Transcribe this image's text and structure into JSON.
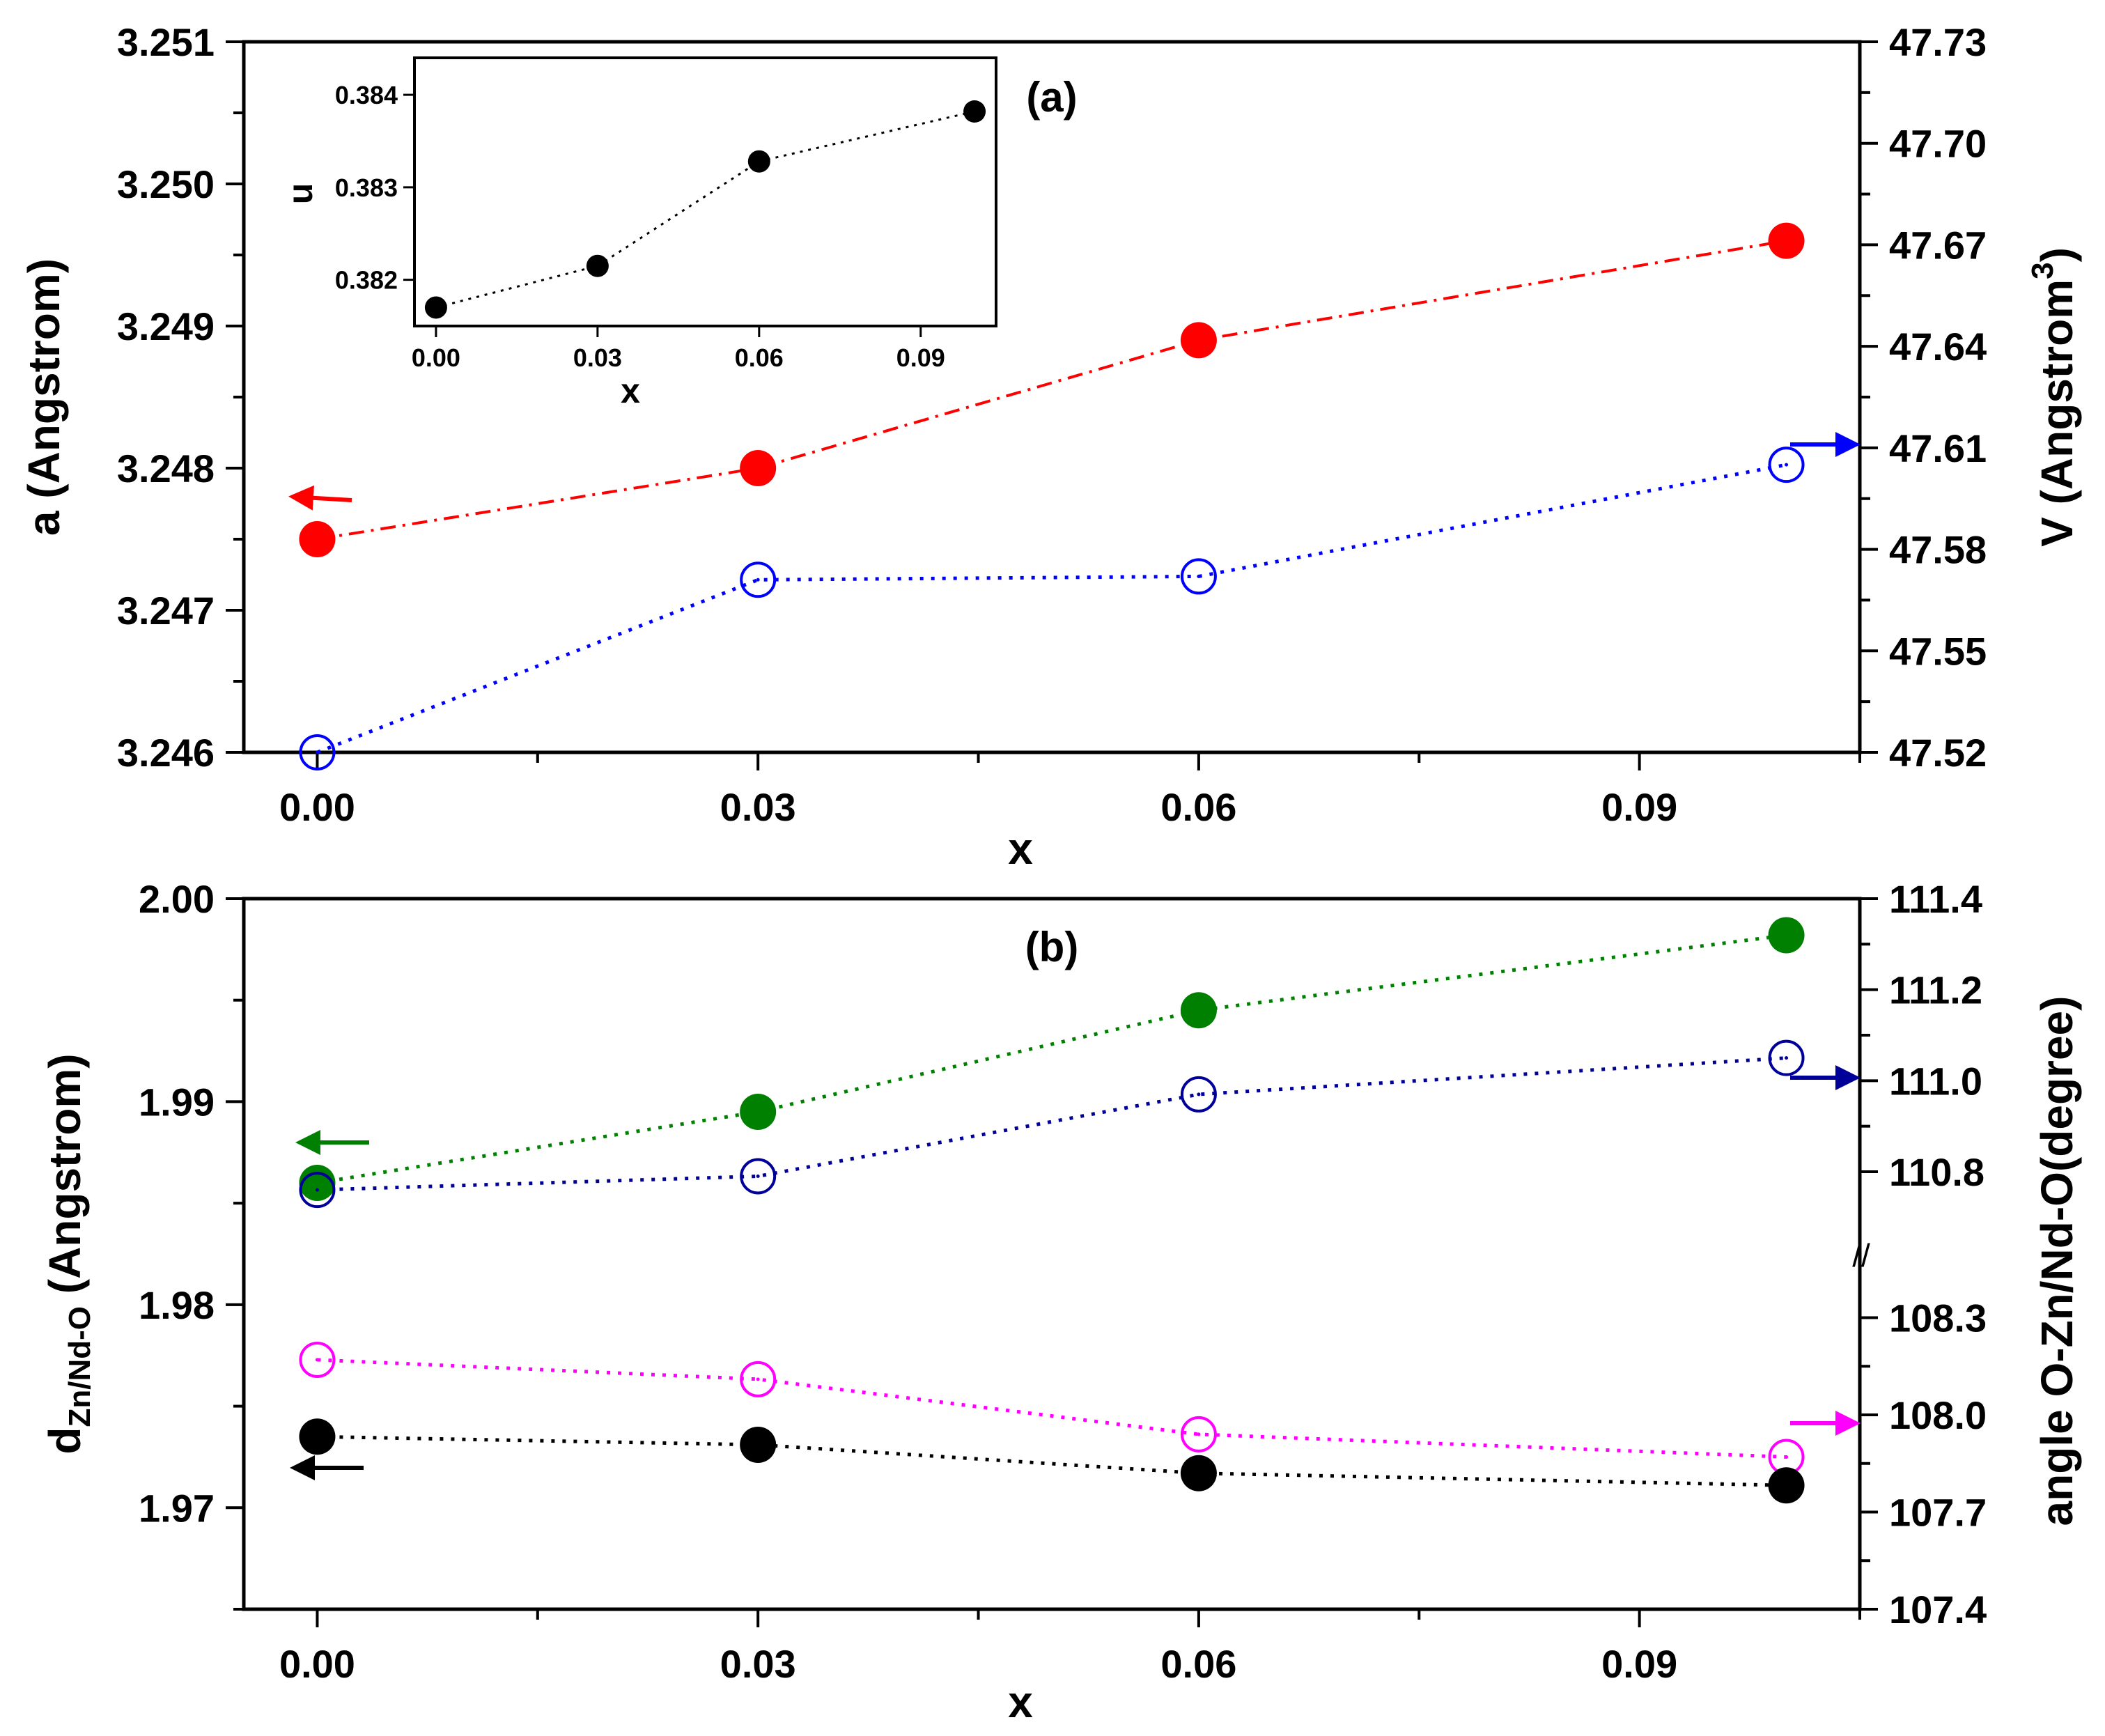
{
  "chart_data": [
    {
      "id": "a",
      "type": "line",
      "panel_label": "(a)",
      "xlabel": "x",
      "x_ticks": [
        "0.00",
        "0.03",
        "0.06",
        "0.09"
      ],
      "xlim": [
        -0.005,
        0.105
      ],
      "left_axis": {
        "label": "a (Angstrom)",
        "ylim": [
          3.246,
          3.251
        ],
        "ticks": [
          "3.246",
          "3.247",
          "3.248",
          "3.249",
          "3.250",
          "3.251"
        ]
      },
      "right_axis": {
        "label": "V (Angstrom",
        "label_sup": "3",
        "label_end": ")",
        "ylim": [
          47.52,
          47.73
        ],
        "ticks": [
          "47.52",
          "47.55",
          "47.58",
          "47.61",
          "47.64",
          "47.67",
          "47.70",
          "47.73"
        ]
      },
      "series": [
        {
          "name": "a",
          "axis": "left",
          "x": [
            0.0,
            0.03,
            0.06,
            0.1
          ],
          "values": [
            3.2475,
            3.248,
            3.2489,
            3.2496
          ],
          "color": "#ff0000",
          "marker": "filled-circle",
          "line": "dash-dot"
        },
        {
          "name": "V",
          "axis": "right",
          "x": [
            0.0,
            0.03,
            0.06,
            0.1
          ],
          "values": [
            47.52,
            47.571,
            47.572,
            47.605
          ],
          "color": "#0000ff",
          "marker": "open-circle",
          "line": "dotted"
        }
      ],
      "annotations": [
        "arrow pointing left (red) at a series",
        "arrow pointing right (blue) at V series"
      ],
      "inset": {
        "type": "scatter",
        "xlabel": "x",
        "ylabel": "u",
        "x_ticks": [
          "0.00",
          "0.03",
          "0.06",
          "0.09"
        ],
        "y_ticks": [
          "0.382",
          "0.383",
          "0.384"
        ],
        "xlim": [
          -0.004,
          0.104
        ],
        "ylim": [
          0.3815,
          0.3844
        ],
        "x": [
          0.0,
          0.03,
          0.06,
          0.1
        ],
        "values": [
          0.3817,
          0.38215,
          0.38328,
          0.38382
        ],
        "color": "#000000",
        "line": "dotted"
      }
    },
    {
      "id": "b",
      "type": "line",
      "panel_label": "(b)",
      "xlabel": "x",
      "x_ticks": [
        "0.00",
        "0.03",
        "0.06",
        "0.09"
      ],
      "xlim": [
        -0.005,
        0.105
      ],
      "left_axis": {
        "label_d": "d",
        "label_sub": "Zn/Nd-O",
        "label_rest": " (Angstrom)",
        "ylim": [
          1.965,
          2.0
        ],
        "ticks": [
          "1.97",
          "1.98",
          "1.99",
          "2.00"
        ]
      },
      "right_axis": {
        "label": "angle O-Zn/Nd-O(degree)",
        "break_label": "//",
        "upper_ticks": [
          "110.8",
          "111.0",
          "111.2",
          "111.4"
        ],
        "lower_ticks": [
          "107.4",
          "107.7",
          "108.0",
          "108.3"
        ],
        "upper_range": [
          110.65,
          111.4
        ],
        "lower_range": [
          107.4,
          108.4
        ]
      },
      "series": [
        {
          "name": "d (upper)",
          "axis": "left",
          "x": [
            0.0,
            0.03,
            0.06,
            0.1
          ],
          "values": [
            1.986,
            1.9895,
            1.9945,
            1.9982
          ],
          "color": "#008000",
          "marker": "filled-circle",
          "line": "dotted"
        },
        {
          "name": "angle (upper)",
          "axis": "right",
          "x": [
            0.0,
            0.03,
            0.06,
            0.1
          ],
          "values": [
            110.76,
            110.79,
            110.97,
            111.05
          ],
          "color": "#000099",
          "marker": "open-circle",
          "line": "dotted"
        },
        {
          "name": "angle (lower)",
          "axis": "right",
          "x": [
            0.0,
            0.03,
            0.06,
            0.1
          ],
          "values": [
            108.17,
            108.11,
            107.94,
            107.87
          ],
          "color": "#ff00ff",
          "marker": "open-circle",
          "line": "dotted"
        },
        {
          "name": "d (lower)",
          "axis": "left",
          "x": [
            0.0,
            0.03,
            0.06,
            0.1
          ],
          "values": [
            1.9735,
            1.9731,
            1.9717,
            1.9711
          ],
          "color": "#000000",
          "marker": "filled-circle",
          "line": "dotted"
        }
      ],
      "annotations": [
        "arrow pointing left (green)",
        "arrow pointing left (black)",
        "arrow pointing right (navy)",
        "arrow pointing right (magenta)"
      ]
    }
  ]
}
